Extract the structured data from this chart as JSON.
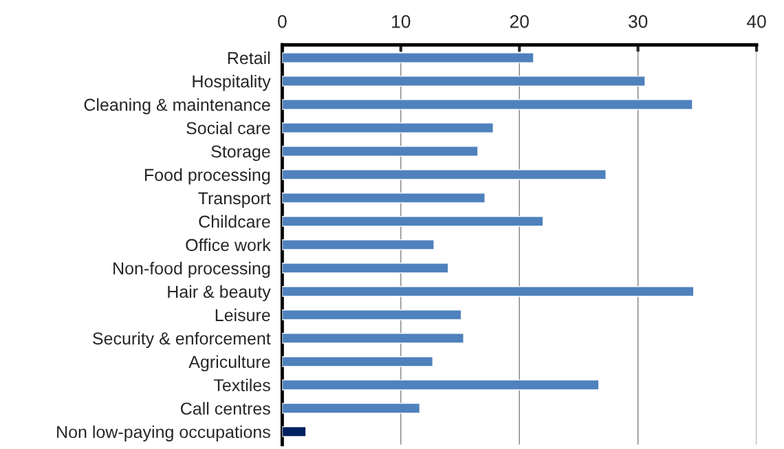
{
  "chart_data": {
    "type": "bar",
    "orientation": "horizontal",
    "categories": [
      "Retail",
      "Hospitality",
      "Cleaning & maintenance",
      "Social care",
      "Storage",
      "Food processing",
      "Transport",
      "Childcare",
      "Office work",
      "Non-food processing",
      "Hair & beauty",
      "Leisure",
      "Security & enforcement",
      "Agriculture",
      "Textiles",
      "Call centres",
      "Non low-paying occupations"
    ],
    "values": [
      21.2,
      30.6,
      34.6,
      17.8,
      16.5,
      27.3,
      17.1,
      22.0,
      12.8,
      14.0,
      34.7,
      15.1,
      15.3,
      12.7,
      26.7,
      11.6,
      2.0
    ],
    "colors": [
      "#4f81bd",
      "#4f81bd",
      "#4f81bd",
      "#4f81bd",
      "#4f81bd",
      "#4f81bd",
      "#4f81bd",
      "#4f81bd",
      "#4f81bd",
      "#4f81bd",
      "#4f81bd",
      "#4f81bd",
      "#4f81bd",
      "#4f81bd",
      "#4f81bd",
      "#4f81bd",
      "#002060"
    ],
    "xlim": [
      0,
      40
    ],
    "xticks": [
      0,
      10,
      20,
      30,
      40
    ],
    "grid": "x"
  }
}
